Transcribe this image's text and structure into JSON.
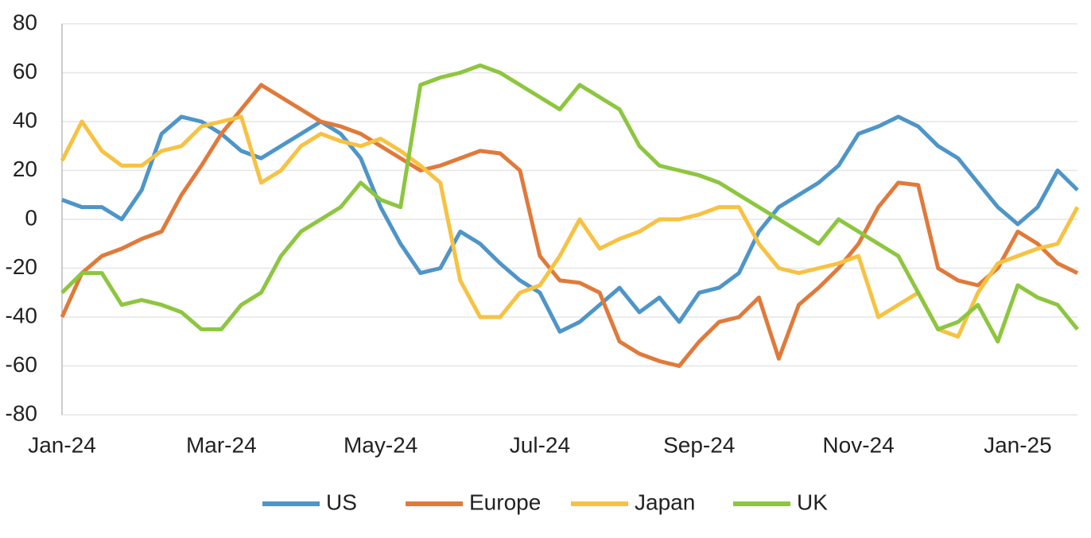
{
  "chart_data": {
    "type": "line",
    "categories": [
      "Jan-24",
      null,
      null,
      null,
      null,
      null,
      null,
      null,
      "Mar-24",
      null,
      null,
      null,
      null,
      null,
      null,
      null,
      "May-24",
      null,
      null,
      null,
      null,
      null,
      null,
      null,
      "Jul-24",
      null,
      null,
      null,
      null,
      null,
      null,
      null,
      "Sep-24",
      null,
      null,
      null,
      null,
      null,
      null,
      null,
      "Nov-24",
      null,
      null,
      null,
      null,
      null,
      null,
      null,
      "Jan-25",
      null,
      null,
      null
    ],
    "series": [
      {
        "name": "US",
        "color": "#4e95c8",
        "values": [
          8,
          5,
          5,
          0,
          12,
          35,
          42,
          40,
          35,
          28,
          25,
          30,
          35,
          40,
          35,
          25,
          5,
          -10,
          -22,
          -20,
          -5,
          -10,
          -18,
          -25,
          -30,
          -46,
          -42,
          -35,
          -28,
          -38,
          -32,
          -42,
          -30,
          -28,
          -22,
          -5,
          5,
          10,
          15,
          22,
          35,
          38,
          42,
          38,
          30,
          25,
          15,
          5,
          -2,
          5,
          20,
          12
        ]
      },
      {
        "name": "Europe",
        "color": "#e07a3a",
        "values": [
          -40,
          -22,
          -15,
          -12,
          -8,
          -5,
          10,
          22,
          35,
          45,
          55,
          50,
          45,
          40,
          38,
          35,
          30,
          25,
          20,
          22,
          25,
          28,
          27,
          20,
          -15,
          -25,
          -26,
          -30,
          -50,
          -55,
          -58,
          -60,
          -50,
          -42,
          -40,
          -32,
          -57,
          -35,
          -28,
          -20,
          -10,
          5,
          15,
          14,
          -20,
          -25,
          -27,
          -20,
          -5,
          -10,
          -18,
          -22
        ]
      },
      {
        "name": "Japan",
        "color": "#f7c242",
        "values": [
          24,
          40,
          28,
          22,
          22,
          28,
          30,
          38,
          40,
          42,
          15,
          20,
          30,
          35,
          32,
          30,
          33,
          28,
          22,
          15,
          -25,
          -40,
          -40,
          -30,
          -27,
          -15,
          0,
          -12,
          -8,
          -5,
          0,
          0,
          2,
          5,
          5,
          -10,
          -20,
          -22,
          -20,
          -18,
          -15,
          -40,
          -35,
          -30,
          -45,
          -48,
          -30,
          -18,
          -15,
          -12,
          -10,
          5
        ]
      },
      {
        "name": "UK",
        "color": "#8dc63f",
        "values": [
          -30,
          -22,
          -22,
          -35,
          -33,
          -35,
          -38,
          -45,
          -45,
          -35,
          -30,
          -15,
          -5,
          0,
          5,
          15,
          8,
          5,
          55,
          58,
          60,
          63,
          60,
          55,
          50,
          45,
          55,
          50,
          45,
          30,
          22,
          20,
          18,
          15,
          10,
          5,
          0,
          -5,
          -10,
          0,
          -5,
          -10,
          -15,
          -30,
          -45,
          -42,
          -35,
          -50,
          -27,
          -32,
          -35,
          -45
        ]
      }
    ],
    "ylim": [
      -80,
      80
    ],
    "yticks": [
      -80,
      -60,
      -40,
      -20,
      0,
      20,
      40,
      60,
      80
    ],
    "grid": true,
    "legend": "bottom"
  }
}
